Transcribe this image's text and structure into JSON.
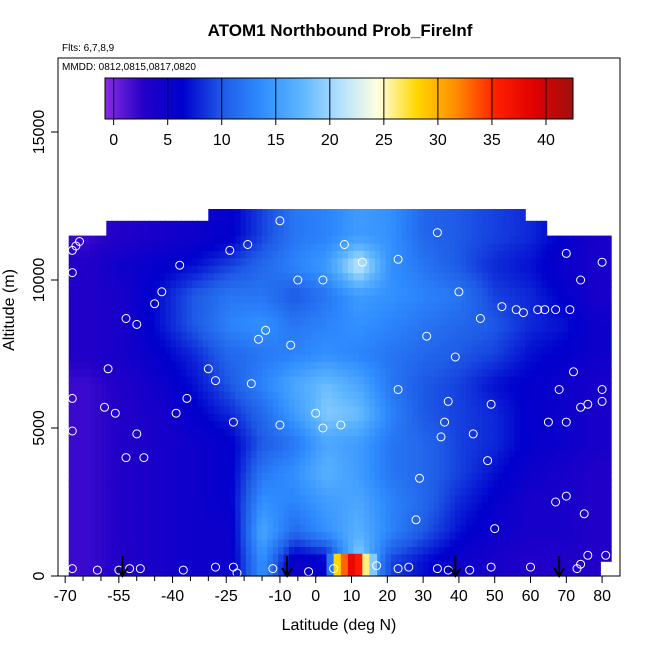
{
  "chart_data": {
    "type": "heatmap",
    "title": "ATOM1 Northbound Prob_FireInf",
    "flights_note": "Flts: 6,7,8,9",
    "dates_note": "MMDD: 0812,0815,0817,0820",
    "xlabel": "Latitude (deg N)",
    "ylabel": "Altitude (m)",
    "xlim": [
      -72,
      85
    ],
    "ylim": [
      0,
      17500
    ],
    "x_ticks": [
      -70,
      -55,
      -40,
      -25,
      -10,
      0,
      10,
      20,
      30,
      40,
      50,
      60,
      70,
      80
    ],
    "x_tick_labels": [
      "-70",
      "-55",
      "-40",
      "-25",
      "-10",
      "0",
      "10",
      "20",
      "30",
      "40",
      "50",
      "60",
      "70",
      "80"
    ],
    "x_minor_ticks": [
      -65,
      -60,
      -50,
      -45,
      -35,
      -30,
      -20,
      -15,
      -5
    ],
    "y_ticks": [
      0,
      5000,
      10000,
      15000
    ],
    "y_tick_labels": [
      "0",
      "5000",
      "10000",
      "15000"
    ],
    "colorbar": {
      "range": [
        -0.8,
        42.5
      ],
      "ticks": [
        0,
        5,
        10,
        15,
        20,
        25,
        30,
        35,
        40
      ],
      "tick_labels": [
        "0",
        "5",
        "10",
        "15",
        "20",
        "25",
        "30",
        "35",
        "40"
      ],
      "colors": [
        "#8a2be2",
        "#2200c8",
        "#0000cd",
        "#1e5ae6",
        "#2f8cff",
        "#5bb4ff",
        "#b0e0ff",
        "#ffffe0",
        "#ffd700",
        "#ff8c00",
        "#ff2000",
        "#e00000",
        "#a01010"
      ]
    },
    "heat_grid": {
      "lat_centers": [
        -64,
        -54,
        -44,
        -34,
        -24,
        -15,
        -6,
        3,
        12,
        21,
        30,
        40,
        50,
        60,
        70,
        78
      ],
      "alt_centers": [
        500,
        1500,
        2500,
        3500,
        4500,
        5500,
        6500,
        7500,
        8500,
        9500,
        10500,
        11500
      ],
      "values": [
        [
          2,
          3,
          4,
          5,
          5,
          14,
          5,
          6,
          20,
          9,
          7,
          5,
          4,
          3,
          3,
          3
        ],
        [
          2,
          3,
          4,
          5,
          5,
          16,
          11,
          14,
          17,
          13,
          10,
          7,
          5,
          4,
          4,
          3
        ],
        [
          2,
          3,
          4,
          5,
          6,
          14,
          13,
          15,
          16,
          13,
          11,
          8,
          6,
          4,
          4,
          3
        ],
        [
          2,
          3,
          4,
          5,
          6,
          12,
          14,
          17,
          15,
          12,
          11,
          9,
          7,
          5,
          4,
          3
        ],
        [
          2,
          3,
          4,
          5,
          6,
          10,
          12,
          16,
          15,
          12,
          11,
          9,
          8,
          6,
          5,
          4
        ],
        [
          2,
          3,
          4,
          6,
          8,
          11,
          15,
          19,
          18,
          13,
          10,
          9,
          8,
          6,
          5,
          4
        ],
        [
          2,
          3,
          5,
          7,
          10,
          13,
          16,
          18,
          16,
          12,
          10,
          9,
          7,
          6,
          5,
          4
        ],
        [
          3,
          4,
          6,
          8,
          11,
          12,
          13,
          14,
          13,
          12,
          11,
          10,
          9,
          7,
          6,
          5
        ],
        [
          3,
          4,
          7,
          10,
          13,
          14,
          12,
          13,
          14,
          13,
          12,
          11,
          10,
          8,
          7,
          5
        ],
        [
          3,
          4,
          7,
          10,
          12,
          12,
          10,
          12,
          15,
          14,
          13,
          12,
          9,
          8,
          6,
          4
        ],
        [
          3,
          5,
          6,
          7,
          9,
          11,
          13,
          15,
          22,
          14,
          12,
          10,
          8,
          7,
          5,
          4
        ],
        [
          2,
          3,
          4,
          5,
          6,
          9,
          12,
          13,
          15,
          14,
          11,
          10,
          9,
          8,
          6,
          4
        ]
      ]
    },
    "bright_band": {
      "description_values": [
        {
          "lat": 4,
          "alt": 250,
          "value": 12
        },
        {
          "lat": 6,
          "alt": 250,
          "value": 28
        },
        {
          "lat": 8,
          "alt": 250,
          "value": 33
        },
        {
          "lat": 10,
          "alt": 250,
          "value": 38
        },
        {
          "lat": 12,
          "alt": 250,
          "value": 36
        },
        {
          "lat": 14,
          "alt": 250,
          "value": 26
        },
        {
          "lat": 16,
          "alt": 250,
          "value": 19
        }
      ]
    },
    "flight_points": [
      {
        "lat": -68,
        "alt": 10250
      },
      {
        "lat": -68,
        "alt": 11000
      },
      {
        "lat": -67,
        "alt": 11150
      },
      {
        "lat": -66,
        "alt": 11300
      },
      {
        "lat": -68,
        "alt": 6000
      },
      {
        "lat": -68,
        "alt": 4900
      },
      {
        "lat": -58,
        "alt": 7000
      },
      {
        "lat": -59,
        "alt": 5700
      },
      {
        "lat": -56,
        "alt": 5500
      },
      {
        "lat": -53,
        "alt": 8700
      },
      {
        "lat": -50,
        "alt": 8500
      },
      {
        "lat": -45,
        "alt": 9200
      },
      {
        "lat": -43,
        "alt": 9600
      },
      {
        "lat": -38,
        "alt": 10500
      },
      {
        "lat": -30,
        "alt": 7000
      },
      {
        "lat": -28,
        "alt": 6600
      },
      {
        "lat": -24,
        "alt": 11000
      },
      {
        "lat": -19,
        "alt": 11200
      },
      {
        "lat": -16,
        "alt": 8000
      },
      {
        "lat": -14,
        "alt": 8300
      },
      {
        "lat": -18,
        "alt": 6500
      },
      {
        "lat": -10,
        "alt": 12000
      },
      {
        "lat": -7,
        "alt": 7800
      },
      {
        "lat": -5,
        "alt": 10000
      },
      {
        "lat": 2,
        "alt": 10000
      },
      {
        "lat": 8,
        "alt": 11200
      },
      {
        "lat": 13,
        "alt": 10600
      },
      {
        "lat": 23,
        "alt": 10700
      },
      {
        "lat": 31,
        "alt": 8100
      },
      {
        "lat": 34,
        "alt": 11600
      },
      {
        "lat": 39,
        "alt": 7400
      },
      {
        "lat": 40,
        "alt": 9600
      },
      {
        "lat": 46,
        "alt": 8700
      },
      {
        "lat": 52,
        "alt": 9100
      },
      {
        "lat": 56,
        "alt": 9000
      },
      {
        "lat": 58,
        "alt": 8900
      },
      {
        "lat": 62,
        "alt": 9000
      },
      {
        "lat": 64,
        "alt": 9000
      },
      {
        "lat": 67,
        "alt": 9000
      },
      {
        "lat": 71,
        "alt": 9000
      },
      {
        "lat": 70,
        "alt": 10900
      },
      {
        "lat": 74,
        "alt": 10000
      },
      {
        "lat": 77,
        "alt": 11900
      },
      {
        "lat": 80,
        "alt": 10600
      },
      {
        "lat": 80,
        "alt": 6300
      },
      {
        "lat": 80,
        "alt": 5900
      },
      {
        "lat": 76,
        "alt": 5800
      },
      {
        "lat": 74,
        "alt": 5700
      },
      {
        "lat": 72,
        "alt": 6900
      },
      {
        "lat": 70,
        "alt": 5200
      },
      {
        "lat": 68,
        "alt": 6300
      },
      {
        "lat": 65,
        "alt": 5200
      },
      {
        "lat": 49,
        "alt": 5800
      },
      {
        "lat": 44,
        "alt": 4800
      },
      {
        "lat": 37,
        "alt": 5900
      },
      {
        "lat": 35,
        "alt": 4700
      },
      {
        "lat": 36,
        "alt": 5200
      },
      {
        "lat": 23,
        "alt": 6300
      },
      {
        "lat": 7,
        "alt": 5100
      },
      {
        "lat": 2,
        "alt": 5000
      },
      {
        "lat": 0,
        "alt": 5500
      },
      {
        "lat": -10,
        "alt": 5100
      },
      {
        "lat": -23,
        "alt": 5200
      },
      {
        "lat": -36,
        "alt": 6000
      },
      {
        "lat": -39,
        "alt": 5500
      },
      {
        "lat": -50,
        "alt": 4800
      },
      {
        "lat": -53,
        "alt": 4000
      },
      {
        "lat": -48,
        "alt": 4000
      },
      {
        "lat": 48,
        "alt": 3900
      },
      {
        "lat": 29,
        "alt": 3300
      },
      {
        "lat": 28,
        "alt": 1900
      },
      {
        "lat": 50,
        "alt": 1600
      },
      {
        "lat": 67,
        "alt": 2500
      },
      {
        "lat": 70,
        "alt": 2700
      },
      {
        "lat": 75,
        "alt": 2100
      },
      {
        "lat": 76,
        "alt": 700
      },
      {
        "lat": 81,
        "alt": 700
      },
      {
        "lat": 74,
        "alt": 400
      },
      {
        "lat": 73,
        "alt": 250
      },
      {
        "lat": -68,
        "alt": 250
      },
      {
        "lat": -61,
        "alt": 200
      },
      {
        "lat": -55,
        "alt": 200
      },
      {
        "lat": -52,
        "alt": 250
      },
      {
        "lat": -49,
        "alt": 250
      },
      {
        "lat": -37,
        "alt": 200
      },
      {
        "lat": -28,
        "alt": 300
      },
      {
        "lat": -23,
        "alt": 300
      },
      {
        "lat": -22,
        "alt": 100
      },
      {
        "lat": -12,
        "alt": 250
      },
      {
        "lat": -2,
        "alt": 150
      },
      {
        "lat": 5,
        "alt": 250
      },
      {
        "lat": 17,
        "alt": 350
      },
      {
        "lat": 23,
        "alt": 250
      },
      {
        "lat": 26,
        "alt": 300
      },
      {
        "lat": 34,
        "alt": 250
      },
      {
        "lat": 37,
        "alt": 200
      },
      {
        "lat": 43,
        "alt": 200
      },
      {
        "lat": 49,
        "alt": 300
      },
      {
        "lat": 60,
        "alt": 300
      }
    ],
    "arrows_lat": [
      -54,
      -8,
      39,
      68
    ]
  }
}
